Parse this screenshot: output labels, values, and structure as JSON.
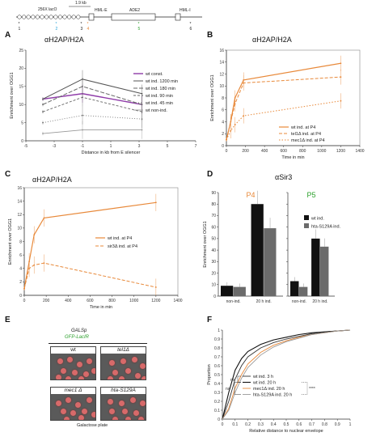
{
  "panel_A_top": {
    "scale_label": "1.9 kb",
    "lacO_label": "256X lacO",
    "hmle_label": "HML-E",
    "ade2_label": "ADE2",
    "hmli_label": "HML-I",
    "marker_numbers": [
      "1",
      "2",
      "3",
      "4",
      "5",
      "6"
    ]
  },
  "panels": {
    "A": {
      "letter": "A",
      "title": "αH2AP/H2A"
    },
    "B": {
      "letter": "B",
      "title": "αH2AP/H2A"
    },
    "C": {
      "letter": "C",
      "title": "αH2AP/H2A"
    },
    "D": {
      "letter": "D",
      "title": "αSir3",
      "sub_left": "P4",
      "sub_right": "P5"
    },
    "E": {
      "letter": "E",
      "header1": "GALSp",
      "header2": "GFP-LacIR",
      "footer": "Galactose plate",
      "cells": [
        "wt",
        "tel1Δ",
        "mec1 Δ",
        "hta-S129A"
      ]
    },
    "F": {
      "letter": "F"
    }
  },
  "colors": {
    "wt_const": "#8e3aa8",
    "orange": "#e8893a",
    "gray": "#555555",
    "black": "#111111",
    "darkgray": "#6b6b6b"
  },
  "chart_data": [
    {
      "panel": "A",
      "type": "line",
      "title": "αH2AP/H2A",
      "xlabel": "Distance in kb from E silencer",
      "ylabel": "Enrichment over OGG1",
      "xlim": [
        -5,
        7
      ],
      "ylim": [
        0,
        25
      ],
      "xticks": [
        -5,
        -3,
        -1,
        1,
        3,
        5,
        7
      ],
      "yticks": [
        0,
        5,
        10,
        15,
        20,
        25
      ],
      "legend": "top-right",
      "series": [
        {
          "name": "wt const.",
          "x": [
            -3.8,
            -1,
            3.2
          ],
          "y": [
            11.5,
            13,
            10
          ]
        },
        {
          "name": "wt ind. 1200 min",
          "x": [
            -3.8,
            -1,
            3.2
          ],
          "y": [
            11.5,
            17,
            13
          ]
        },
        {
          "name": "wt ind. 180 min",
          "x": [
            -3.8,
            -1,
            3.2
          ],
          "y": [
            10,
            15,
            10
          ]
        },
        {
          "name": "wt ind. 90 min",
          "x": [
            -3.8,
            -1,
            3.2
          ],
          "y": [
            8,
            12,
            8
          ]
        },
        {
          "name": "wt ind. 45 min",
          "x": [
            -3.8,
            -1,
            3.2
          ],
          "y": [
            5,
            7,
            6
          ]
        },
        {
          "name": "wt non-ind.",
          "x": [
            -3.8,
            -1,
            3.2
          ],
          "y": [
            2,
            3,
            3
          ]
        }
      ]
    },
    {
      "panel": "B",
      "type": "line",
      "title": "αH2AP/H2A",
      "xlabel": "Time in min",
      "ylabel": "Enrichment over OGG1",
      "xlim": [
        0,
        1400
      ],
      "ylim": [
        0,
        16
      ],
      "xticks": [
        0,
        200,
        400,
        600,
        800,
        1000,
        1200,
        1400
      ],
      "yticks": [
        0,
        2,
        4,
        6,
        8,
        10,
        12,
        14,
        16
      ],
      "legend": "bottom-right",
      "series": [
        {
          "name": "wt ind. at P4",
          "x": [
            0,
            45,
            90,
            180,
            1200
          ],
          "y": [
            1,
            4,
            8,
            11,
            13.8
          ]
        },
        {
          "name": "tel1Δ ind. at P4",
          "x": [
            0,
            45,
            90,
            180,
            1200
          ],
          "y": [
            1,
            4,
            7,
            10.5,
            11.5
          ]
        },
        {
          "name": "mec1Δ ind. at P4",
          "x": [
            0,
            45,
            90,
            180,
            1200
          ],
          "y": [
            1,
            2.5,
            3.5,
            5,
            7.5
          ]
        }
      ]
    },
    {
      "panel": "C",
      "type": "line",
      "title": "αH2AP/H2A",
      "xlabel": "Time in min",
      "ylabel": "Enrichment over OGG1",
      "xlim": [
        0,
        1400
      ],
      "ylim": [
        0,
        16
      ],
      "xticks": [
        0,
        200,
        400,
        600,
        800,
        1000,
        1200,
        1400
      ],
      "yticks": [
        0,
        2,
        4,
        6,
        8,
        10,
        12,
        14,
        16
      ],
      "legend": "center-right",
      "series": [
        {
          "name": "wt ind. at P4",
          "x": [
            0,
            45,
            90,
            180,
            1200
          ],
          "y": [
            1,
            5,
            9,
            11.5,
            13.8
          ]
        },
        {
          "name": "sir3Δ ind. at P4",
          "x": [
            0,
            45,
            90,
            180,
            1200
          ],
          "y": [
            1,
            4,
            4.5,
            4.8,
            1.2
          ]
        }
      ]
    },
    {
      "panel": "D",
      "type": "bar",
      "title": "αSir3",
      "ylabel": "Enrichment over OGG1",
      "ylim": [
        0,
        90
      ],
      "yticks": [
        0,
        10,
        20,
        30,
        40,
        50,
        60,
        70,
        80,
        90
      ],
      "categories": [
        "non-ind.",
        "20 h ind."
      ],
      "groups": [
        {
          "name": "P4",
          "series": [
            {
              "name": "wt ind.",
              "values": [
                9,
                80
              ]
            },
            {
              "name": "hta-S129A ind.",
              "values": [
                8,
                59
              ]
            }
          ]
        },
        {
          "name": "P5",
          "series": [
            {
              "name": "wt ind.",
              "values": [
                13,
                50
              ]
            },
            {
              "name": "hta-S129A ind.",
              "values": [
                8,
                43
              ]
            }
          ]
        }
      ]
    },
    {
      "panel": "F",
      "type": "line",
      "xlabel": "Relative distance to nuclear envelope",
      "ylabel": "Proportion",
      "xlim": [
        0,
        1
      ],
      "ylim": [
        0,
        1
      ],
      "xticks": [
        0,
        0.1,
        0.2,
        0.3,
        0.4,
        0.5,
        0.6,
        0.7,
        0.8,
        0.9,
        1
      ],
      "yticks": [
        0,
        0.1,
        0.2,
        0.3,
        0.4,
        0.5,
        0.6,
        0.7,
        0.8,
        0.9,
        1
      ],
      "legend": "center",
      "sig_labels": [
        "ns",
        "ns",
        "****"
      ],
      "series": [
        {
          "name": "wt ind. 3 h",
          "x": [
            0,
            0.05,
            0.1,
            0.15,
            0.2,
            0.3,
            0.4,
            0.5,
            0.6,
            0.7,
            0.8,
            0.9,
            1
          ],
          "y": [
            0,
            0.2,
            0.45,
            0.6,
            0.7,
            0.8,
            0.86,
            0.9,
            0.93,
            0.96,
            0.98,
            0.99,
            1
          ]
        },
        {
          "name": "wt ind. 20 h",
          "x": [
            0,
            0.05,
            0.1,
            0.15,
            0.2,
            0.3,
            0.4,
            0.5,
            0.6,
            0.7,
            0.8,
            0.9,
            1
          ],
          "y": [
            0,
            0.3,
            0.55,
            0.68,
            0.76,
            0.84,
            0.89,
            0.92,
            0.95,
            0.97,
            0.98,
            0.99,
            1
          ]
        },
        {
          "name": "mec1Δ ind. 20 h",
          "x": [
            0,
            0.05,
            0.1,
            0.15,
            0.2,
            0.3,
            0.4,
            0.5,
            0.6,
            0.7,
            0.8,
            0.9,
            1
          ],
          "y": [
            0,
            0.12,
            0.35,
            0.5,
            0.62,
            0.75,
            0.83,
            0.88,
            0.92,
            0.95,
            0.97,
            0.99,
            1
          ]
        },
        {
          "name": "hta-S129A ind. 20 h",
          "x": [
            0,
            0.05,
            0.1,
            0.15,
            0.2,
            0.3,
            0.4,
            0.5,
            0.6,
            0.7,
            0.8,
            0.9,
            1
          ],
          "y": [
            0,
            0.1,
            0.3,
            0.46,
            0.58,
            0.72,
            0.81,
            0.87,
            0.91,
            0.95,
            0.97,
            0.99,
            1
          ]
        }
      ]
    }
  ]
}
